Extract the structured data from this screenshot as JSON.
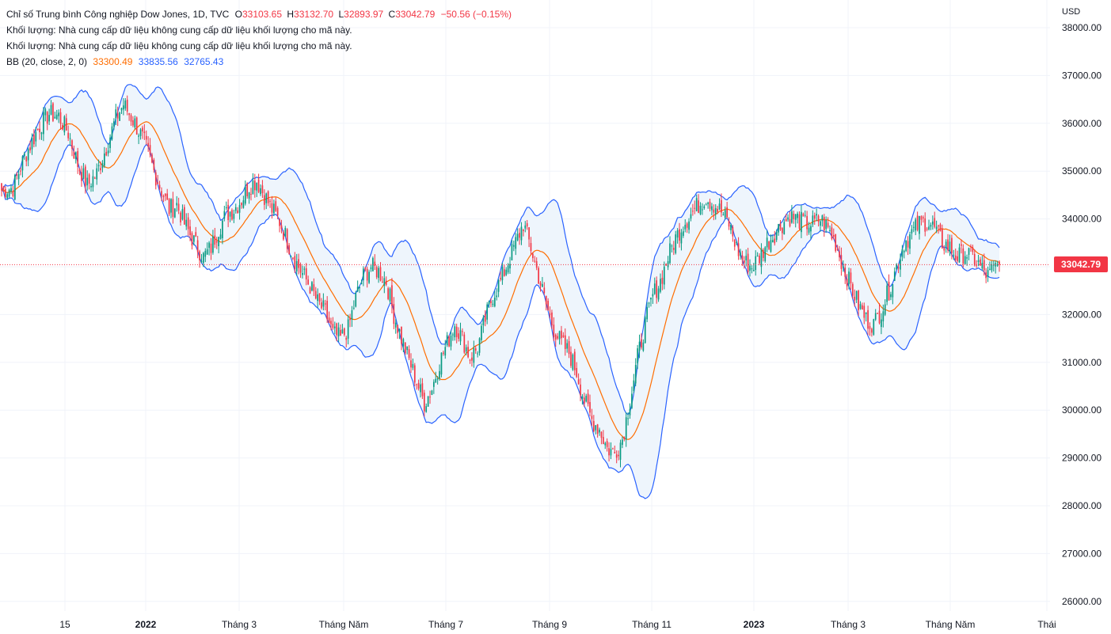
{
  "legend": {
    "symbol": "Chỉ số Trung bình Công nghiệp Dow Jones, 1D, TVC",
    "o_label": "O",
    "o_value": "33103.65",
    "h_label": "H",
    "h_value": "33132.70",
    "l_label": "L",
    "l_value": "32893.97",
    "c_label": "C",
    "c_value": "33042.79",
    "change": "−50.56 (−0.15%)",
    "volume_line_1": "Khối lượng: Nhà cung cấp dữ liệu không cung cấp dữ liệu khối lượng cho mã này.",
    "volume_line_2": "Khối lượng: Nhà cung cấp dữ liệu không cung cấp dữ liệu khối lượng cho mã này.",
    "bb_label": "BB (20, close, 2, 0)",
    "bb_basis": "33300.49",
    "bb_upper": "33835.56",
    "bb_lower": "32765.43"
  },
  "currency": "USD",
  "last_price": "33042.79",
  "colors": {
    "up": "#089981",
    "down": "#f23645",
    "basis": "#ff6d00",
    "bands": "#2962ff",
    "band_fill": "#eef5fc",
    "grid": "#f0f3fa"
  },
  "chart_data": {
    "type": "candlestick",
    "title": "Chỉ số Trung bình Công nghiệp Dow Jones, 1D, TVC",
    "ylim": [
      25800,
      38350
    ],
    "y_ticks": [
      "26000.00",
      "27000.00",
      "28000.00",
      "29000.00",
      "30000.00",
      "31000.00",
      "32000.00",
      "33000.00",
      "34000.00",
      "35000.00",
      "36000.00",
      "37000.00",
      "38000.00"
    ],
    "x_ticks": [
      {
        "label": "15",
        "bold": false
      },
      {
        "label": "2022",
        "bold": true
      },
      {
        "label": "Tháng 3",
        "bold": false
      },
      {
        "label": "Tháng Năm",
        "bold": false
      },
      {
        "label": "Tháng 7",
        "bold": false
      },
      {
        "label": "Tháng 9",
        "bold": false
      },
      {
        "label": "Tháng 11",
        "bold": false
      },
      {
        "label": "2023",
        "bold": true
      },
      {
        "label": "Tháng 3",
        "bold": false
      },
      {
        "label": "Tháng Năm",
        "bold": false
      },
      {
        "label": "Thái",
        "bold": false
      }
    ],
    "close_path": [
      [
        0,
        34600
      ],
      [
        6,
        34650
      ],
      [
        12,
        35300
      ],
      [
        20,
        35950
      ],
      [
        25,
        36200
      ],
      [
        30,
        36150
      ],
      [
        35,
        35800
      ],
      [
        40,
        35150
      ],
      [
        45,
        34700
      ],
      [
        50,
        34950
      ],
      [
        55,
        35500
      ],
      [
        60,
        36100
      ],
      [
        64,
        36400
      ],
      [
        70,
        36000
      ],
      [
        75,
        35600
      ],
      [
        80,
        35000
      ],
      [
        85,
        34500
      ],
      [
        88,
        34200
      ],
      [
        92,
        34300
      ],
      [
        96,
        33900
      ],
      [
        100,
        33600
      ],
      [
        106,
        33200
      ],
      [
        110,
        33400
      ],
      [
        114,
        33800
      ],
      [
        118,
        34100
      ],
      [
        122,
        34200
      ],
      [
        126,
        34400
      ],
      [
        130,
        34700
      ],
      [
        134,
        34800
      ],
      [
        138,
        34500
      ],
      [
        142,
        34200
      ],
      [
        146,
        33950
      ],
      [
        150,
        33550
      ],
      [
        154,
        33150
      ],
      [
        158,
        32850
      ],
      [
        162,
        32600
      ],
      [
        166,
        32250
      ],
      [
        170,
        32050
      ],
      [
        174,
        31600
      ],
      [
        178,
        31500
      ],
      [
        182,
        31700
      ],
      [
        186,
        32350
      ],
      [
        190,
        32800
      ],
      [
        194,
        33000
      ],
      [
        198,
        32900
      ],
      [
        202,
        32700
      ],
      [
        206,
        32000
      ],
      [
        210,
        31500
      ],
      [
        214,
        31050
      ],
      [
        218,
        30600
      ],
      [
        222,
        30150
      ],
      [
        226,
        30450
      ],
      [
        230,
        31000
      ],
      [
        234,
        31400
      ],
      [
        238,
        31800
      ],
      [
        242,
        31500
      ],
      [
        246,
        31100
      ],
      [
        250,
        31300
      ],
      [
        254,
        31900
      ],
      [
        258,
        32400
      ],
      [
        262,
        32700
      ],
      [
        266,
        33100
      ],
      [
        270,
        33500
      ],
      [
        274,
        33900
      ],
      [
        278,
        33400
      ],
      [
        282,
        32800
      ],
      [
        286,
        32200
      ],
      [
        290,
        31700
      ],
      [
        294,
        31400
      ],
      [
        298,
        31200
      ],
      [
        302,
        30800
      ],
      [
        306,
        30200
      ],
      [
        310,
        29800
      ],
      [
        314,
        29600
      ],
      [
        318,
        29200
      ],
      [
        322,
        29100
      ],
      [
        326,
        29400
      ],
      [
        330,
        30200
      ],
      [
        334,
        31100
      ],
      [
        338,
        31800
      ],
      [
        342,
        32400
      ],
      [
        346,
        32700
      ],
      [
        350,
        33200
      ],
      [
        354,
        33600
      ],
      [
        358,
        33900
      ],
      [
        362,
        34100
      ],
      [
        366,
        34300
      ],
      [
        370,
        34450
      ],
      [
        374,
        34300
      ],
      [
        378,
        34150
      ],
      [
        382,
        33900
      ],
      [
        386,
        33400
      ],
      [
        390,
        33100
      ],
      [
        394,
        33000
      ],
      [
        398,
        33200
      ],
      [
        402,
        33500
      ],
      [
        406,
        33700
      ],
      [
        410,
        33900
      ],
      [
        414,
        34050
      ],
      [
        418,
        34000
      ],
      [
        422,
        33900
      ],
      [
        426,
        33900
      ],
      [
        430,
        34000
      ],
      [
        434,
        33800
      ],
      [
        438,
        33500
      ],
      [
        442,
        33000
      ],
      [
        446,
        32600
      ],
      [
        450,
        32200
      ],
      [
        454,
        31900
      ],
      [
        458,
        31800
      ],
      [
        462,
        32100
      ],
      [
        466,
        32500
      ],
      [
        470,
        33000
      ],
      [
        474,
        33500
      ],
      [
        478,
        33700
      ],
      [
        482,
        33900
      ],
      [
        486,
        33950
      ],
      [
        490,
        33800
      ],
      [
        494,
        33500
      ],
      [
        498,
        33400
      ],
      [
        502,
        33200
      ],
      [
        506,
        33300
      ],
      [
        510,
        33200
      ],
      [
        514,
        33000
      ],
      [
        518,
        32800
      ],
      [
        522,
        33000
      ],
      [
        525,
        33042.79
      ]
    ]
  }
}
